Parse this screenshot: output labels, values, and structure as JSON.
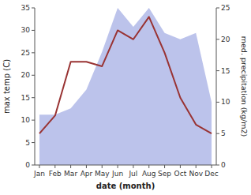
{
  "chart_data": {
    "type": "line",
    "xlabel": "date (month)",
    "ylabel": "max temp (C)",
    "y2label": "med. precipitation (kg/m2)",
    "categories": [
      "Jan",
      "Feb",
      "Mar",
      "Apr",
      "May",
      "Jun",
      "Jul",
      "Aug",
      "Sep",
      "Oct",
      "Nov",
      "Dec"
    ],
    "series": [
      {
        "type": "area",
        "axis": "y2",
        "color": "#b0b8e8",
        "values": [
          8,
          8,
          9,
          12,
          18,
          25,
          22,
          25,
          21,
          20,
          21,
          10
        ]
      },
      {
        "type": "line",
        "color": "#993333",
        "values": [
          7,
          11,
          23,
          23,
          22,
          30,
          28,
          33,
          25,
          15,
          9,
          7
        ]
      }
    ],
    "ylim": [
      0,
      35
    ],
    "yticks": [
      0,
      5,
      10,
      15,
      20,
      25,
      30,
      35
    ],
    "y2lim": [
      0,
      25
    ],
    "y2ticks": [
      0,
      5,
      10,
      15,
      20,
      25
    ],
    "grid": false
  }
}
